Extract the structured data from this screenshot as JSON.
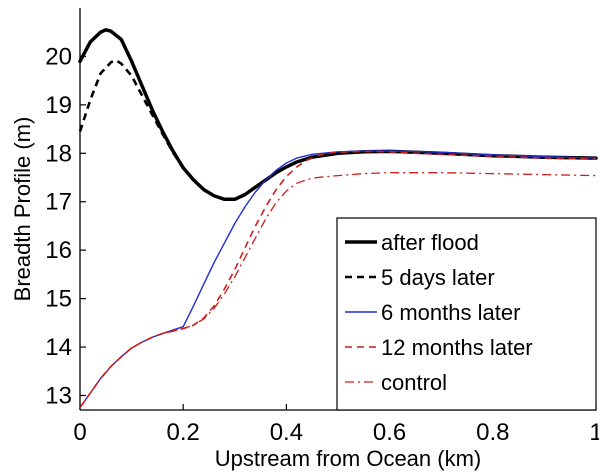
{
  "chart_data": {
    "type": "line",
    "xlabel": "Upstream from Ocean (km)",
    "ylabel": "Breadth Profile (m)",
    "xlim": [
      0,
      1
    ],
    "ylim": [
      12.7,
      21
    ],
    "xticks": [
      0,
      0.2,
      0.4,
      0.6,
      0.8,
      1
    ],
    "xtick_labels": [
      "0",
      "0.2",
      "0.4",
      "0.6",
      "0.8",
      "1"
    ],
    "yticks": [
      13,
      14,
      15,
      16,
      17,
      18,
      19,
      20
    ],
    "ytick_labels": [
      "13",
      "14",
      "15",
      "16",
      "17",
      "18",
      "19",
      "20"
    ],
    "legend_position": "lower-right",
    "series": [
      {
        "name": "after flood",
        "color": "#000000",
        "style": "solid",
        "width": 3.5,
        "x": [
          0,
          0.02,
          0.04,
          0.05,
          0.06,
          0.08,
          0.1,
          0.12,
          0.14,
          0.16,
          0.18,
          0.2,
          0.22,
          0.24,
          0.26,
          0.28,
          0.3,
          0.32,
          0.34,
          0.36,
          0.38,
          0.4,
          0.42,
          0.45,
          0.5,
          0.55,
          0.6,
          0.65,
          0.7,
          0.8,
          0.9,
          1
        ],
        "y": [
          19.9,
          20.3,
          20.5,
          20.55,
          20.52,
          20.35,
          19.9,
          19.4,
          18.9,
          18.45,
          18.05,
          17.7,
          17.45,
          17.25,
          17.12,
          17.05,
          17.05,
          17.15,
          17.3,
          17.45,
          17.6,
          17.72,
          17.82,
          17.92,
          18.0,
          18.03,
          18.04,
          18.02,
          18.0,
          17.95,
          17.92,
          17.9
        ]
      },
      {
        "name": "5 days later",
        "color": "#000000",
        "style": "dashed",
        "width": 2.6,
        "x": [
          0,
          0.02,
          0.04,
          0.06,
          0.07,
          0.08,
          0.1,
          0.12,
          0.14,
          0.16,
          0.18,
          0.2,
          0.22,
          0.24,
          0.26,
          0.28,
          0.3,
          0.32,
          0.34,
          0.36,
          0.38,
          0.4,
          0.42,
          0.45,
          0.5,
          0.55,
          0.6,
          0.65,
          0.7,
          0.8,
          0.9,
          1
        ],
        "y": [
          18.45,
          19.1,
          19.65,
          19.88,
          19.92,
          19.85,
          19.6,
          19.2,
          18.8,
          18.4,
          18.02,
          17.7,
          17.45,
          17.25,
          17.12,
          17.05,
          17.05,
          17.15,
          17.3,
          17.45,
          17.6,
          17.72,
          17.82,
          17.92,
          18.0,
          18.03,
          18.04,
          18.02,
          18.0,
          17.95,
          17.92,
          17.9
        ]
      },
      {
        "name": "6 months later",
        "color": "#1f2fd0",
        "style": "solid",
        "width": 1.4,
        "x": [
          0,
          0.02,
          0.04,
          0.06,
          0.08,
          0.1,
          0.12,
          0.14,
          0.16,
          0.18,
          0.2,
          0.22,
          0.24,
          0.26,
          0.28,
          0.3,
          0.32,
          0.34,
          0.36,
          0.38,
          0.4,
          0.42,
          0.45,
          0.5,
          0.55,
          0.6,
          0.65,
          0.7,
          0.8,
          0.9,
          1
        ],
        "y": [
          12.75,
          13.05,
          13.35,
          13.6,
          13.8,
          13.98,
          14.1,
          14.2,
          14.28,
          14.35,
          14.42,
          14.85,
          15.3,
          15.75,
          16.15,
          16.55,
          16.9,
          17.2,
          17.45,
          17.65,
          17.8,
          17.9,
          17.98,
          18.03,
          18.05,
          18.05,
          18.04,
          18.02,
          17.97,
          17.93,
          17.9
        ]
      },
      {
        "name": "12 months later",
        "color": "#cc1c1c",
        "style": "dashed",
        "width": 1.6,
        "x": [
          0,
          0.02,
          0.04,
          0.06,
          0.08,
          0.1,
          0.12,
          0.14,
          0.16,
          0.18,
          0.2,
          0.22,
          0.24,
          0.26,
          0.28,
          0.3,
          0.32,
          0.34,
          0.36,
          0.38,
          0.4,
          0.42,
          0.44,
          0.46,
          0.48,
          0.5,
          0.55,
          0.6,
          0.65,
          0.7,
          0.8,
          0.9,
          1
        ],
        "y": [
          12.75,
          13.05,
          13.35,
          13.6,
          13.8,
          13.98,
          14.1,
          14.2,
          14.28,
          14.33,
          14.38,
          14.45,
          14.6,
          14.85,
          15.2,
          15.6,
          16.05,
          16.5,
          16.9,
          17.25,
          17.52,
          17.72,
          17.86,
          17.95,
          18.0,
          18.02,
          18.04,
          18.03,
          18.0,
          17.98,
          17.94,
          17.9,
          17.88
        ]
      },
      {
        "name": "control",
        "color": "#cc1c1c",
        "style": "dashdot",
        "width": 1.3,
        "x": [
          0,
          0.02,
          0.04,
          0.06,
          0.08,
          0.1,
          0.12,
          0.14,
          0.16,
          0.18,
          0.2,
          0.22,
          0.24,
          0.26,
          0.28,
          0.3,
          0.32,
          0.34,
          0.36,
          0.38,
          0.4,
          0.42,
          0.44,
          0.46,
          0.48,
          0.5,
          0.55,
          0.6,
          0.65,
          0.7,
          0.8,
          0.9,
          1
        ],
        "y": [
          12.75,
          13.05,
          13.35,
          13.6,
          13.8,
          13.98,
          14.1,
          14.2,
          14.28,
          14.33,
          14.38,
          14.45,
          14.58,
          14.8,
          15.1,
          15.45,
          15.85,
          16.25,
          16.65,
          16.98,
          17.22,
          17.38,
          17.46,
          17.5,
          17.52,
          17.54,
          17.58,
          17.6,
          17.6,
          17.6,
          17.58,
          17.56,
          17.54
        ]
      }
    ]
  }
}
